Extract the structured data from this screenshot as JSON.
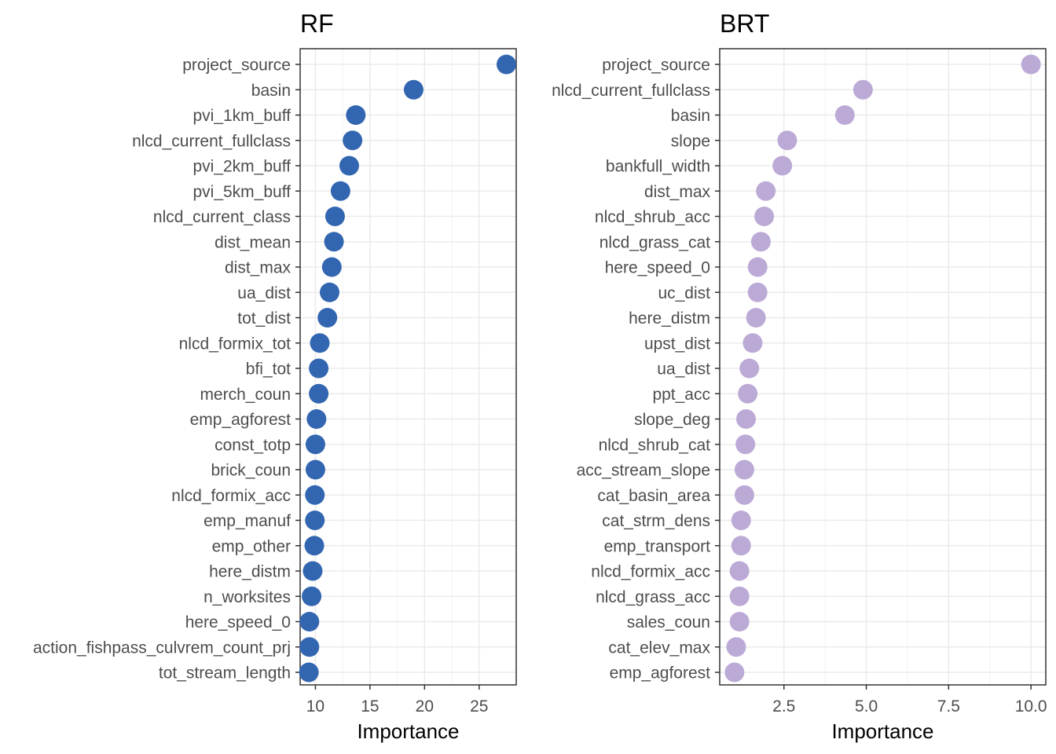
{
  "chart_data": [
    {
      "type": "scatter",
      "title": "RF",
      "xlabel": "Importance",
      "ylabel": "",
      "xlim": [
        8.6,
        28.4
      ],
      "xticks": [
        10,
        15,
        20,
        25
      ],
      "xtick_labels": [
        "10",
        "15",
        "20",
        "25"
      ],
      "grid": true,
      "color": "#3366b0",
      "categories": [
        "project_source",
        "basin",
        "pvi_1km_buff",
        "nlcd_current_fullclass",
        "pvi_2km_buff",
        "pvi_5km_buff",
        "nlcd_current_class",
        "dist_mean",
        "dist_max",
        "ua_dist",
        "tot_dist",
        "nlcd_formix_tot",
        "bfi_tot",
        "merch_coun",
        "emp_agforest",
        "const_totp",
        "brick_coun",
        "nlcd_formix_acc",
        "emp_manuf",
        "emp_other",
        "here_distm",
        "n_worksites",
        "here_speed_0",
        "action_fishpass_culvrem_count_prj",
        "tot_stream_length"
      ],
      "values": [
        27.5,
        19.0,
        13.7,
        13.4,
        13.1,
        12.3,
        11.8,
        11.7,
        11.5,
        11.3,
        11.1,
        10.4,
        10.3,
        10.3,
        10.1,
        10.0,
        10.0,
        9.95,
        9.95,
        9.9,
        9.75,
        9.65,
        9.45,
        9.45,
        9.4
      ]
    },
    {
      "type": "scatter",
      "title": "BRT",
      "xlabel": "Importance",
      "ylabel": "",
      "xlim": [
        0.55,
        10.45
      ],
      "xticks": [
        2.5,
        5.0,
        7.5,
        10.0
      ],
      "xtick_labels": [
        "2.5",
        "5.0",
        "7.5",
        "10.0"
      ],
      "grid": true,
      "color": "#bcaad6",
      "categories": [
        "project_source",
        "nlcd_current_fullclass",
        "basin",
        "slope",
        "bankfull_width",
        "dist_max",
        "nlcd_shrub_acc",
        "nlcd_grass_cat",
        "here_speed_0",
        "uc_dist",
        "here_distm",
        "upst_dist",
        "ua_dist",
        "ppt_acc",
        "slope_deg",
        "nlcd_shrub_cat",
        "acc_stream_slope",
        "cat_basin_area",
        "cat_strm_dens",
        "emp_transport",
        "nlcd_formix_acc",
        "nlcd_grass_acc",
        "sales_coun",
        "cat_elev_max",
        "emp_agforest"
      ],
      "values": [
        10.0,
        4.9,
        4.35,
        2.6,
        2.45,
        1.95,
        1.9,
        1.8,
        1.7,
        1.7,
        1.65,
        1.55,
        1.45,
        1.4,
        1.35,
        1.33,
        1.3,
        1.3,
        1.2,
        1.2,
        1.15,
        1.15,
        1.15,
        1.05,
        1.0
      ]
    }
  ]
}
